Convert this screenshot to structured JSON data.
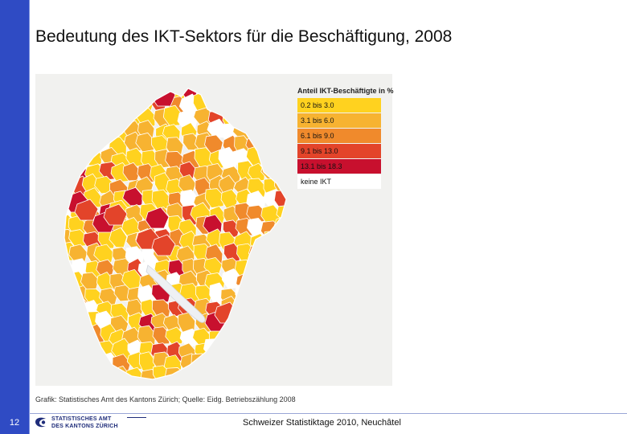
{
  "slide": {
    "title": "Bedeutung des IKT-Sektors für die Beschäftigung, 2008",
    "page_number": "12",
    "source_note": "Grafik: Statistisches Amt des Kantons Zürich; Quelle: Eidg. Betriebszählung 2008",
    "footer_text": "Schweizer Statistiktage 2010, Neuchâtel",
    "logo_lines": [
      "STATISTISCHES AMT",
      "DES KANTONS ZÜRICH"
    ]
  },
  "map": {
    "legend_title": "Anteil IKT-Beschäftigte in %",
    "classes": [
      {
        "label": "0.2 bis 3.0",
        "color": "#ffd21f"
      },
      {
        "label": "3.1 bis 6.0",
        "color": "#f7b331"
      },
      {
        "label": "6.1 bis 9.0",
        "color": "#f08a2c"
      },
      {
        "label": "9.1 bis 13.0",
        "color": "#e3442a"
      },
      {
        "label": "13.1 bis 18.3",
        "color": "#c8102e"
      },
      {
        "label": "keine IKT",
        "color": "#ffffff"
      }
    ],
    "lake_color": "#eef0f3",
    "border_color": "#ffffff"
  }
}
